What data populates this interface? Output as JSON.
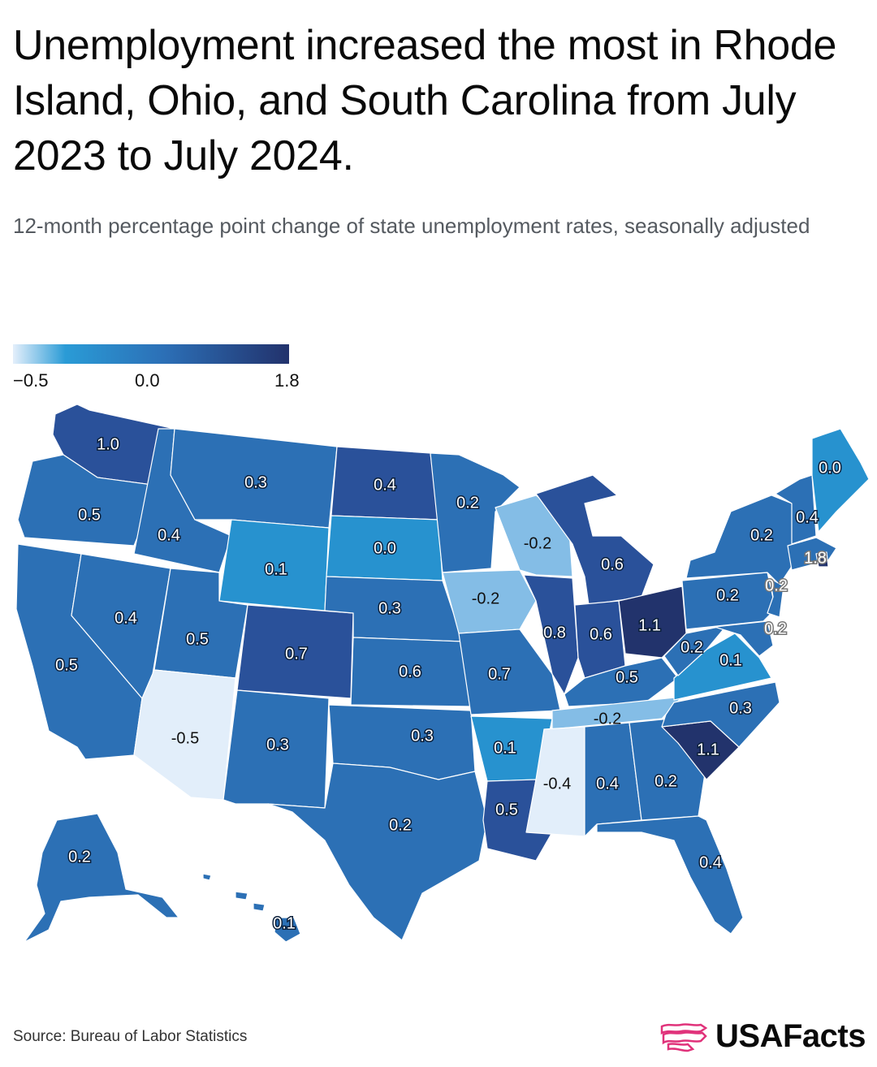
{
  "title": "Unemployment increased the most in Rhode Island, Ohio, and South Carolina from July 2023 to July 2024.",
  "subtitle": "12-month percentage point change of state unemployment rates, seasonally adjusted",
  "legend": {
    "min_label": "−0.5",
    "mid_label": "0.0",
    "max_label": "1.8"
  },
  "colors": {
    "very_light": "#e2eefa",
    "light": "#84bde6",
    "zero": "#2792cf",
    "mid": "#2c70b5",
    "dark": "#2a519a",
    "darkest": "#22336c"
  },
  "map": {
    "states": [
      {
        "abbr": "WA",
        "value": "1.0"
      },
      {
        "abbr": "OR",
        "value": "0.5"
      },
      {
        "abbr": "CA",
        "value": "0.5"
      },
      {
        "abbr": "ID",
        "value": "0.4"
      },
      {
        "abbr": "NV",
        "value": "0.4"
      },
      {
        "abbr": "MT",
        "value": "0.3"
      },
      {
        "abbr": "WY",
        "value": "0.1"
      },
      {
        "abbr": "UT",
        "value": "0.5"
      },
      {
        "abbr": "AZ",
        "value": "-0.5"
      },
      {
        "abbr": "CO",
        "value": "0.7"
      },
      {
        "abbr": "NM",
        "value": "0.3"
      },
      {
        "abbr": "ND",
        "value": "0.4"
      },
      {
        "abbr": "SD",
        "value": "0.0"
      },
      {
        "abbr": "NE",
        "value": "0.3"
      },
      {
        "abbr": "KS",
        "value": "0.6"
      },
      {
        "abbr": "OK",
        "value": "0.3"
      },
      {
        "abbr": "TX",
        "value": "0.2"
      },
      {
        "abbr": "MN",
        "value": "0.2"
      },
      {
        "abbr": "IA",
        "value": "-0.2"
      },
      {
        "abbr": "MO",
        "value": "0.7"
      },
      {
        "abbr": "AR",
        "value": "0.1"
      },
      {
        "abbr": "LA",
        "value": "0.5"
      },
      {
        "abbr": "WI",
        "value": "-0.2"
      },
      {
        "abbr": "IL",
        "value": "0.8"
      },
      {
        "abbr": "MI",
        "value": "0.6"
      },
      {
        "abbr": "IN",
        "value": "0.6"
      },
      {
        "abbr": "OH",
        "value": "1.1"
      },
      {
        "abbr": "KY",
        "value": "0.5"
      },
      {
        "abbr": "TN",
        "value": "-0.2"
      },
      {
        "abbr": "MS",
        "value": "-0.4"
      },
      {
        "abbr": "AL",
        "value": "0.4"
      },
      {
        "abbr": "GA",
        "value": "0.2"
      },
      {
        "abbr": "FL",
        "value": "0.4"
      },
      {
        "abbr": "SC",
        "value": "1.1"
      },
      {
        "abbr": "NC",
        "value": "0.3"
      },
      {
        "abbr": "VA",
        "value": "0.1"
      },
      {
        "abbr": "WV",
        "value": "0.2"
      },
      {
        "abbr": "PA",
        "value": "0.2"
      },
      {
        "abbr": "NY",
        "value": "0.2"
      },
      {
        "abbr": "NJ",
        "value": "0.2"
      },
      {
        "abbr": "DE_MD",
        "value": "0.2"
      },
      {
        "abbr": "VT_NH",
        "value": "0.4"
      },
      {
        "abbr": "ME",
        "value": "0.0"
      },
      {
        "abbr": "RI",
        "value": "1.8"
      },
      {
        "abbr": "AK",
        "value": "0.2"
      },
      {
        "abbr": "HI",
        "value": "0.1"
      }
    ]
  },
  "source": "Source: Bureau of Labor Statistics",
  "brand": {
    "name": "USAFacts",
    "icon": "usafacts-logo-icon"
  }
}
